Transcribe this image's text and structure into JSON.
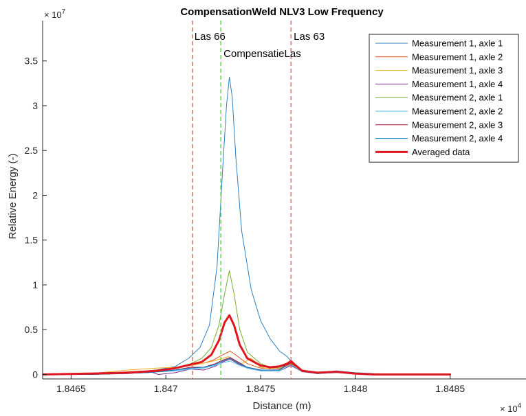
{
  "chart_data": {
    "type": "line",
    "title": "CompensationWeld NLV3 Low Frequency",
    "xlabel": "Distance (m)",
    "ylabel": "Relative Energy (-)",
    "x_exponent_label": "× 10",
    "x_exponent_power": "4",
    "y_exponent_label": "× 10",
    "y_exponent_power": "7",
    "x_scale": 10000,
    "y_scale": 10000000,
    "xlim": [
      18463.5,
      18489.0
    ],
    "ylim": [
      -0.05,
      3.95
    ],
    "x_ticks": [
      18465,
      18470,
      18475,
      18480,
      18485
    ],
    "x_tick_labels": [
      "1.8465",
      "1.847",
      "1.8475",
      "1.848",
      "1.8485"
    ],
    "y_ticks": [
      0,
      0.5,
      1,
      1.5,
      2,
      2.5,
      3,
      3.5
    ],
    "y_tick_labels": [
      "0",
      "0.5",
      "1",
      "1.5",
      "2",
      "2.5",
      "3",
      "3.5"
    ],
    "grid": false,
    "legend_position": "top-right",
    "annotations": [
      {
        "text": "Las 66",
        "x": 18471.4,
        "color": "#e8534a",
        "style": "dashed"
      },
      {
        "text": "CompensatieLas",
        "x": 18472.9,
        "color": "#43d13b",
        "style": "dashed"
      },
      {
        "text": "Las 63",
        "x": 18476.6,
        "color": "#e8534a",
        "style": "dashed"
      }
    ],
    "series": [
      {
        "name": "Measurement 1, axle 1",
        "color": "#2f7fc1",
        "width": 1,
        "x": [
          18463.5,
          18466,
          18468,
          18469.5,
          18470.5,
          18471.2,
          18471.8,
          18472.3,
          18472.7,
          18473.0,
          18473.2,
          18473.35,
          18473.5,
          18473.7,
          18474.0,
          18474.5,
          18475.0,
          18475.5,
          18476.0,
          18476.4,
          18476.6,
          18476.8,
          18477.2,
          18478.0,
          18479.0,
          18480.0,
          18481.0,
          18483.0,
          18485.0
        ],
        "y": [
          0.0,
          0.01,
          0.02,
          0.05,
          0.09,
          0.18,
          0.3,
          0.55,
          1.2,
          2.3,
          3.0,
          3.32,
          3.1,
          2.4,
          1.6,
          0.95,
          0.6,
          0.4,
          0.26,
          0.2,
          0.15,
          0.08,
          0.04,
          0.02,
          0.04,
          0.02,
          0.01,
          0.0,
          0.0
        ]
      },
      {
        "name": "Measurement 1, axle 2",
        "color": "#d95319",
        "width": 1,
        "x": [
          18463.5,
          18466,
          18469,
          18470.5,
          18471.3,
          18471.9,
          18472.5,
          18473.0,
          18473.4,
          18473.8,
          18474.3,
          18475.0,
          18476.0,
          18476.6,
          18477.2,
          18478.0,
          18479.0,
          18480.0,
          18485.0
        ],
        "y": [
          0.0,
          0.01,
          0.04,
          0.07,
          0.1,
          0.12,
          0.16,
          0.22,
          0.26,
          0.2,
          0.12,
          0.07,
          0.06,
          0.12,
          0.04,
          0.02,
          0.03,
          0.01,
          0.0
        ]
      },
      {
        "name": "Measurement 1, axle 3",
        "color": "#edb120",
        "width": 1,
        "x": [
          18463.5,
          18466,
          18468,
          18469.5,
          18470.5,
          18471.3,
          18471.9,
          18472.5,
          18473.0,
          18473.3,
          18473.6,
          18474.0,
          18474.5,
          18475.0,
          18475.5,
          18476.0,
          18476.6,
          18477.2,
          18478.0,
          18479.0,
          18480.0,
          18485.0
        ],
        "y": [
          0.0,
          0.01,
          0.05,
          0.07,
          0.08,
          0.1,
          0.12,
          0.15,
          0.18,
          0.2,
          0.15,
          0.12,
          0.18,
          0.08,
          0.06,
          0.09,
          0.1,
          0.04,
          0.02,
          0.03,
          0.01,
          0.0
        ]
      },
      {
        "name": "Measurement 1, axle 4",
        "color": "#7e2f8e",
        "width": 1,
        "x": [
          18463.5,
          18466,
          18468,
          18469.2,
          18469.6,
          18470.5,
          18471.3,
          18472.0,
          18472.6,
          18473.0,
          18473.4,
          18473.8,
          18474.3,
          18475.0,
          18476.0,
          18476.6,
          18477.2,
          18478.0,
          18479.0,
          18480.0,
          18485.0
        ],
        "y": [
          0.0,
          0.0,
          0.01,
          0.03,
          0.0,
          0.02,
          0.06,
          0.05,
          0.09,
          0.14,
          0.17,
          0.12,
          0.07,
          0.04,
          0.04,
          0.1,
          0.03,
          0.01,
          0.02,
          0.01,
          0.0
        ]
      },
      {
        "name": "Measurement 2, axle 1",
        "color": "#77ac30",
        "width": 1,
        "x": [
          18463.5,
          18466,
          18468,
          18469.5,
          18470.5,
          18471.3,
          18471.9,
          18472.4,
          18472.8,
          18473.1,
          18473.35,
          18473.6,
          18473.9,
          18474.3,
          18475.0,
          18475.5,
          18476.0,
          18476.6,
          18477.2,
          18478.0,
          18479.0,
          18480.0,
          18485.0
        ],
        "y": [
          0.0,
          0.01,
          0.02,
          0.04,
          0.07,
          0.12,
          0.18,
          0.3,
          0.55,
          0.9,
          1.16,
          0.9,
          0.5,
          0.25,
          0.12,
          0.08,
          0.07,
          0.14,
          0.05,
          0.02,
          0.03,
          0.01,
          0.0
        ]
      },
      {
        "name": "Measurement 2, axle 2",
        "color": "#4dbeee",
        "width": 1,
        "x": [
          18463.5,
          18466,
          18469,
          18470.5,
          18471.3,
          18472.0,
          18472.6,
          18473.0,
          18473.4,
          18473.8,
          18474.3,
          18475.0,
          18476.0,
          18476.6,
          18477.2,
          18478.0,
          18479.0,
          18480.0,
          18485.0
        ],
        "y": [
          0.0,
          0.0,
          0.02,
          0.04,
          0.06,
          0.07,
          0.1,
          0.13,
          0.15,
          0.11,
          0.07,
          0.04,
          0.04,
          0.11,
          0.03,
          0.01,
          0.02,
          0.01,
          0.0
        ]
      },
      {
        "name": "Measurement 2, axle 3",
        "color": "#a2142f",
        "width": 1,
        "x": [
          18463.5,
          18466,
          18469,
          18470.5,
          18471.3,
          18472.0,
          18472.6,
          18473.0,
          18473.4,
          18473.8,
          18474.3,
          18475.0,
          18476.0,
          18476.6,
          18477.2,
          18478.0,
          18479.0,
          18480.0,
          18485.0
        ],
        "y": [
          0.0,
          0.0,
          0.02,
          0.05,
          0.08,
          0.08,
          0.12,
          0.16,
          0.19,
          0.14,
          0.08,
          0.05,
          0.05,
          0.13,
          0.04,
          0.01,
          0.03,
          0.01,
          0.0
        ]
      },
      {
        "name": "Measurement 2, axle 4",
        "color": "#0072bd",
        "width": 1,
        "x": [
          18463.5,
          18466,
          18469,
          18470.5,
          18471.3,
          18472.0,
          18472.6,
          18473.0,
          18473.4,
          18473.8,
          18474.3,
          18475.0,
          18476.0,
          18476.6,
          18477.2,
          18478.0,
          18479.0,
          18480.0,
          18485.0
        ],
        "y": [
          0.0,
          0.0,
          0.02,
          0.05,
          0.07,
          0.08,
          0.11,
          0.15,
          0.18,
          0.13,
          0.08,
          0.05,
          0.05,
          0.15,
          0.04,
          0.01,
          0.03,
          0.01,
          0.0
        ]
      },
      {
        "name": "Averaged data",
        "color": "#e0141e",
        "width": 3,
        "x": [
          18463.5,
          18466,
          18468,
          18469.5,
          18470.5,
          18471.3,
          18471.9,
          18472.4,
          18472.8,
          18473.1,
          18473.35,
          18473.6,
          18473.9,
          18474.3,
          18475.0,
          18475.5,
          18476.0,
          18476.4,
          18476.6,
          18476.8,
          18477.2,
          18478.0,
          18479.0,
          18480.0,
          18481.0,
          18485.0
        ],
        "y": [
          0.0,
          0.01,
          0.02,
          0.04,
          0.07,
          0.11,
          0.14,
          0.22,
          0.38,
          0.58,
          0.66,
          0.55,
          0.33,
          0.18,
          0.1,
          0.08,
          0.09,
          0.12,
          0.15,
          0.11,
          0.04,
          0.02,
          0.03,
          0.01,
          0.0,
          0.0
        ]
      }
    ]
  }
}
